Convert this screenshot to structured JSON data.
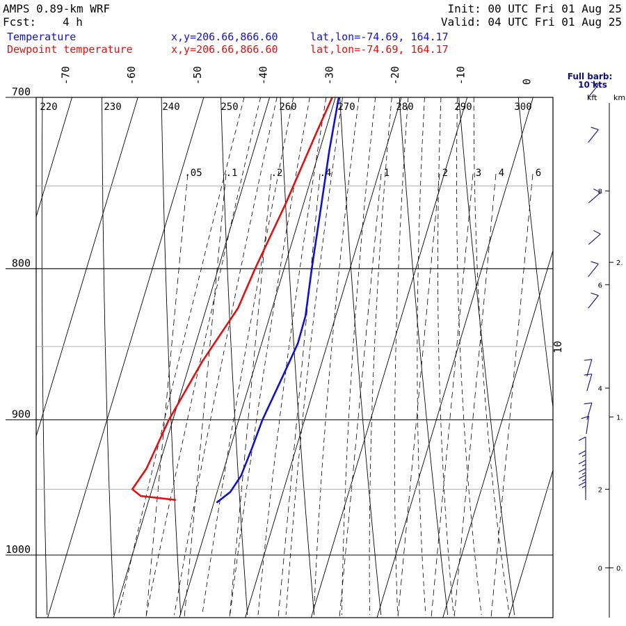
{
  "header": {
    "model": "AMPS 0.89-km WRF",
    "fcst_label": "Fcst:",
    "fcst_value": "4 h",
    "init": "Init: 00 UTC Fri 01 Aug 25",
    "valid": "Valid: 04 UTC Fri 01 Aug 25"
  },
  "legend": [
    {
      "name": "Temperature",
      "xy": "x,y=206.66,866.60",
      "latlon": "lat,lon=-74.69, 164.17",
      "color": "#1010d0"
    },
    {
      "name": "Dewpoint temperature",
      "xy": "x,y=206.66,866.60",
      "latlon": "lat,lon=-74.69, 164.17",
      "color": "#e01010"
    }
  ],
  "wind_panel": {
    "title_line1": "Full barb:",
    "title_line2": "10 kts",
    "kft_label": "kft",
    "km_label": "km",
    "kft_ticks": [
      {
        "label": "8",
        "p": 753
      },
      {
        "label": "6",
        "p": 810
      },
      {
        "label": "4",
        "p": 878
      },
      {
        "label": "2",
        "p": 950
      },
      {
        "label": "0",
        "p": 1010
      }
    ],
    "km_ticks": [
      {
        "label": "2.",
        "p": 796
      },
      {
        "label": "1.",
        "p": 898
      },
      {
        "label": "0.",
        "p": 1010
      }
    ]
  },
  "chart_data": {
    "type": "line",
    "plot": "skew-T log-p sounding",
    "pressure_levels": [
      700,
      800,
      900,
      1000
    ],
    "pressure_labels": [
      "700",
      "800",
      "900",
      "1000"
    ],
    "p_range": [
      700,
      1045
    ],
    "temperature_ticks": [
      -70,
      -60,
      -50,
      -40,
      -30,
      -20,
      -10,
      0
    ],
    "temperature_tick_labels": [
      "-70",
      "-60",
      "-50",
      "-40",
      "-30",
      "-20",
      "-10",
      "0"
    ],
    "extra_isotherm_label": {
      "value": 10,
      "label": "10"
    },
    "theta_labels": [
      220,
      230,
      240,
      250,
      260,
      270,
      280,
      290,
      300
    ],
    "mixing_ratio_labels": [
      ".05",
      ".1",
      ".2",
      ".4",
      "1",
      "2",
      "3",
      "4",
      "6"
    ],
    "grid": true,
    "series": [
      {
        "name": "Temperature",
        "color": "#1010d0",
        "points": [
          {
            "p": 700,
            "t": -29.5
          },
          {
            "p": 730,
            "t": -28.5
          },
          {
            "p": 760,
            "t": -27.3
          },
          {
            "p": 800,
            "t": -25.8
          },
          {
            "p": 830,
            "t": -24.6
          },
          {
            "p": 848,
            "t": -24.5
          },
          {
            "p": 870,
            "t": -25.3
          },
          {
            "p": 900,
            "t": -26.4
          },
          {
            "p": 920,
            "t": -26.7
          },
          {
            "p": 940,
            "t": -27.1
          },
          {
            "p": 952,
            "t": -28.0
          },
          {
            "p": 960,
            "t": -29.6
          }
        ]
      },
      {
        "name": "Dewpoint temperature",
        "color": "#e01010",
        "points": [
          {
            "p": 700,
            "t": -30.5
          },
          {
            "p": 720,
            "t": -31.3
          },
          {
            "p": 760,
            "t": -32.7
          },
          {
            "p": 800,
            "t": -34.4
          },
          {
            "p": 825,
            "t": -35.2
          },
          {
            "p": 860,
            "t": -38.2
          },
          {
            "p": 900,
            "t": -40.6
          },
          {
            "p": 935,
            "t": -41.8
          },
          {
            "p": 950,
            "t": -43.0
          },
          {
            "p": 955,
            "t": -41.4
          },
          {
            "p": 958,
            "t": -35.9
          }
        ]
      }
    ],
    "wind_barbs": [
      {
        "p": 700,
        "speed_kt": 10,
        "dir_deg": 225
      },
      {
        "p": 725,
        "speed_kt": 10,
        "dir_deg": 225
      },
      {
        "p": 760,
        "speed_kt": 10,
        "dir_deg": 235
      },
      {
        "p": 785,
        "speed_kt": 10,
        "dir_deg": 235
      },
      {
        "p": 805,
        "speed_kt": 10,
        "dir_deg": 225
      },
      {
        "p": 825,
        "speed_kt": 10,
        "dir_deg": 225
      },
      {
        "p": 870,
        "speed_kt": 10,
        "dir_deg": 200
      },
      {
        "p": 880,
        "speed_kt": 10,
        "dir_deg": 200
      },
      {
        "p": 900,
        "speed_kt": 10,
        "dir_deg": 200
      },
      {
        "p": 910,
        "speed_kt": 10,
        "dir_deg": 190
      },
      {
        "p": 925,
        "speed_kt": 10,
        "dir_deg": 180
      },
      {
        "p": 935,
        "speed_kt": 15,
        "dir_deg": 180
      },
      {
        "p": 942,
        "speed_kt": 15,
        "dir_deg": 180
      },
      {
        "p": 948,
        "speed_kt": 15,
        "dir_deg": 180
      },
      {
        "p": 953,
        "speed_kt": 15,
        "dir_deg": 180
      },
      {
        "p": 958,
        "speed_kt": 15,
        "dir_deg": 180
      }
    ]
  }
}
